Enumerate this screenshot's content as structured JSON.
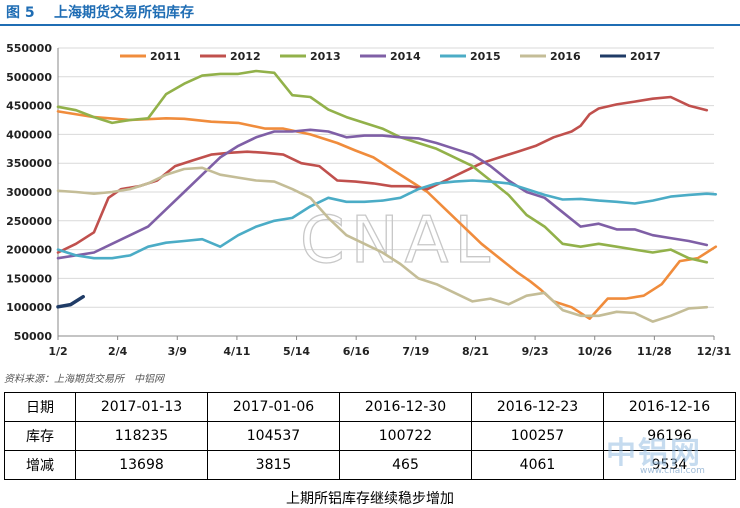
{
  "header": {
    "fig_no": "图 5",
    "title": "上海期货交易所铝库存"
  },
  "chart_data": {
    "type": "line",
    "x_ticks": [
      "1/2",
      "2/4",
      "3/9",
      "4/11",
      "5/14",
      "6/16",
      "7/19",
      "8/21",
      "9/23",
      "10/26",
      "11/28",
      "12/31"
    ],
    "y_ticks": [
      50000,
      100000,
      150000,
      200000,
      250000,
      300000,
      350000,
      400000,
      450000,
      500000,
      550000
    ],
    "ylim": [
      50000,
      550000
    ],
    "grid": "horizontal",
    "legend": "top",
    "watermark": "CNAL",
    "series": [
      {
        "name": "2011",
        "color": "#f08c3c",
        "x": [
          0,
          20,
          40,
          60,
          70,
          85,
          100,
          115,
          125,
          140,
          155,
          165,
          175,
          185,
          195,
          205,
          215,
          225,
          235,
          245,
          255,
          262,
          268,
          275,
          285,
          295,
          305,
          315,
          325,
          335,
          345,
          355,
          365
        ],
        "y": [
          440000,
          430000,
          425000,
          428000,
          427000,
          422000,
          420000,
          410000,
          410000,
          400000,
          385000,
          372000,
          360000,
          340000,
          320000,
          300000,
          270000,
          240000,
          210000,
          185000,
          160000,
          145000,
          130000,
          110000,
          100000,
          80000,
          115000,
          115000,
          120000,
          140000,
          180000,
          185000,
          205000
        ]
      },
      {
        "name": "2012",
        "color": "#c0504d",
        "x": [
          0,
          10,
          20,
          28,
          35,
          45,
          55,
          65,
          75,
          85,
          95,
          105,
          115,
          125,
          135,
          145,
          155,
          165,
          175,
          185,
          195,
          205,
          215,
          225,
          235,
          245,
          255,
          265,
          275,
          285,
          290,
          295,
          300,
          310,
          320,
          330,
          340,
          350,
          360
        ],
        "y": [
          195000,
          210000,
          230000,
          290000,
          305000,
          310000,
          320000,
          345000,
          355000,
          365000,
          368000,
          370000,
          368000,
          365000,
          350000,
          345000,
          320000,
          318000,
          315000,
          310000,
          310000,
          305000,
          320000,
          335000,
          350000,
          360000,
          370000,
          380000,
          395000,
          405000,
          415000,
          435000,
          445000,
          452000,
          457000,
          462000,
          465000,
          450000,
          442000
        ]
      },
      {
        "name": "2013",
        "color": "#92b14a",
        "x": [
          0,
          10,
          20,
          30,
          40,
          50,
          60,
          70,
          80,
          90,
          100,
          110,
          120,
          130,
          140,
          150,
          160,
          170,
          180,
          190,
          200,
          210,
          220,
          230,
          240,
          250,
          260,
          270,
          280,
          290,
          300,
          310,
          320,
          330,
          340,
          350,
          360
        ],
        "y": [
          448000,
          442000,
          430000,
          420000,
          425000,
          428000,
          470000,
          488000,
          502000,
          505000,
          505000,
          510000,
          507000,
          468000,
          465000,
          443000,
          430000,
          420000,
          410000,
          395000,
          385000,
          375000,
          360000,
          345000,
          320000,
          295000,
          260000,
          240000,
          210000,
          205000,
          210000,
          205000,
          200000,
          195000,
          200000,
          185000,
          178000
        ]
      },
      {
        "name": "2014",
        "color": "#7f5fa6",
        "x": [
          0,
          10,
          20,
          30,
          40,
          50,
          60,
          70,
          80,
          90,
          100,
          110,
          120,
          130,
          140,
          150,
          160,
          170,
          180,
          190,
          200,
          210,
          220,
          230,
          240,
          250,
          260,
          270,
          280,
          290,
          300,
          310,
          320,
          330,
          340,
          350,
          360
        ],
        "y": [
          185000,
          190000,
          195000,
          210000,
          225000,
          240000,
          270000,
          300000,
          330000,
          360000,
          380000,
          395000,
          405000,
          405000,
          408000,
          405000,
          395000,
          398000,
          398000,
          395000,
          393000,
          385000,
          375000,
          365000,
          345000,
          320000,
          300000,
          290000,
          265000,
          240000,
          245000,
          235000,
          235000,
          225000,
          220000,
          215000,
          208000
        ]
      },
      {
        "name": "2015",
        "color": "#4bacc6",
        "x": [
          0,
          10,
          20,
          30,
          40,
          50,
          60,
          70,
          80,
          90,
          100,
          110,
          120,
          130,
          140,
          150,
          160,
          170,
          180,
          190,
          200,
          210,
          220,
          230,
          240,
          250,
          260,
          270,
          280,
          290,
          300,
          310,
          320,
          330,
          340,
          350,
          360,
          365
        ],
        "y": [
          200000,
          190000,
          185000,
          185000,
          190000,
          205000,
          212000,
          215000,
          218000,
          205000,
          225000,
          240000,
          250000,
          255000,
          275000,
          290000,
          283000,
          283000,
          285000,
          290000,
          305000,
          315000,
          318000,
          320000,
          318000,
          315000,
          305000,
          295000,
          287000,
          288000,
          285000,
          283000,
          280000,
          285000,
          292000,
          295000,
          297000,
          296000
        ]
      },
      {
        "name": "2016",
        "color": "#c4bd97",
        "x": [
          0,
          10,
          20,
          30,
          40,
          50,
          60,
          70,
          80,
          90,
          100,
          110,
          120,
          130,
          140,
          150,
          160,
          170,
          180,
          190,
          200,
          210,
          220,
          230,
          240,
          250,
          260,
          270,
          280,
          290,
          300,
          310,
          320,
          330,
          340,
          350,
          360
        ],
        "y": [
          302000,
          300000,
          297000,
          300000,
          305000,
          315000,
          330000,
          340000,
          342000,
          330000,
          325000,
          320000,
          318000,
          305000,
          290000,
          255000,
          225000,
          210000,
          195000,
          175000,
          150000,
          140000,
          125000,
          110000,
          115000,
          105000,
          120000,
          125000,
          95000,
          85000,
          85000,
          92000,
          90000,
          75000,
          85000,
          98000,
          100000
        ]
      },
      {
        "name": "2017",
        "color": "#1f3b66",
        "x": [
          0,
          7,
          14
        ],
        "y": [
          100722,
          104537,
          118235
        ]
      }
    ]
  },
  "source": "资料来源：上海期货交易所　中铝网",
  "table": {
    "header_label": "日期",
    "dates": [
      "2017-01-13",
      "2017-01-06",
      "2016-12-30",
      "2016-12-23",
      "2016-12-16"
    ],
    "rows": [
      {
        "label": "库存",
        "values": [
          "118235",
          "104537",
          "100722",
          "100257",
          "96196"
        ]
      },
      {
        "label": "增减",
        "values": [
          "13698",
          "3815",
          "465",
          "4061",
          "9534"
        ]
      }
    ]
  },
  "watermark": {
    "text": "中铝网",
    "url": "www.cnal.com"
  },
  "caption": "上期所铝库存继续稳步增加"
}
